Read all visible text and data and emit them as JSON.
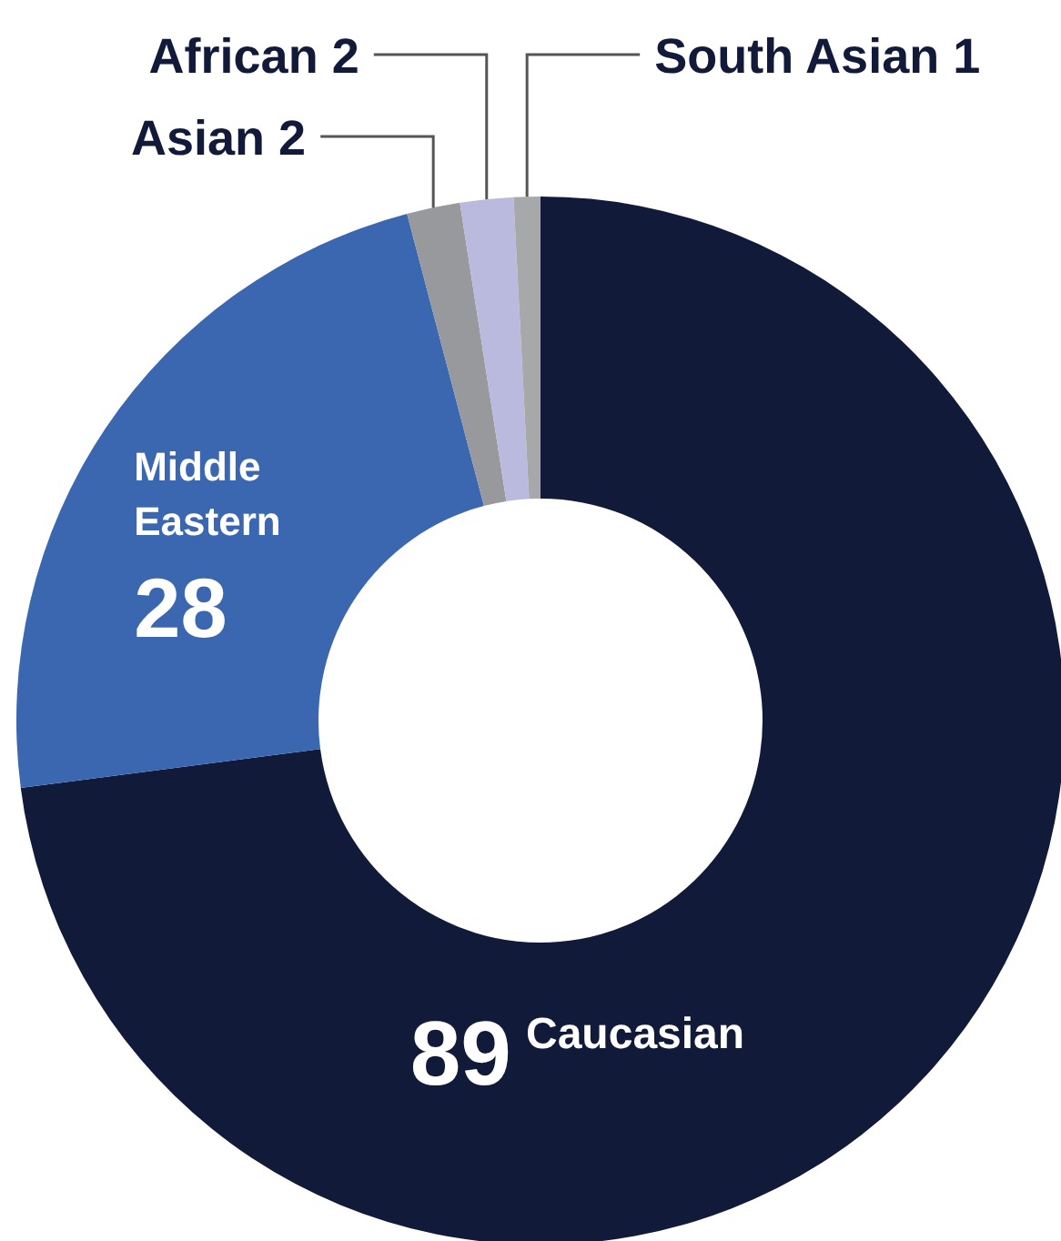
{
  "chart_data": {
    "type": "donut",
    "categories": [
      "Caucasian",
      "Middle Eastern",
      "Asian",
      "African",
      "South Asian"
    ],
    "values": [
      89,
      28,
      2,
      2,
      1
    ],
    "colors": [
      "#121a3a",
      "#3a67b0",
      "#98999d",
      "#b9bade",
      "#a7a8aa"
    ],
    "data_labels": true
  }
}
